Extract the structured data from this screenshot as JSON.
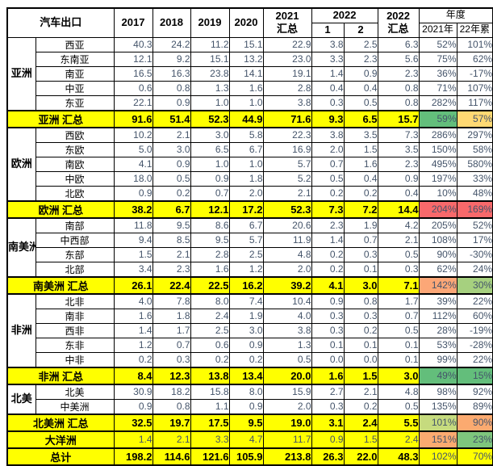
{
  "header": {
    "title": "汽车出口",
    "years": [
      "2017",
      "2018",
      "2019",
      "2020"
    ],
    "total_2021_line1": "2021",
    "total_2021_line2": "汇总",
    "group_2022": "2022",
    "months": [
      "1",
      "2"
    ],
    "total_2022_line1": "2022",
    "total_2022_line2": "汇总",
    "yearly_group": "年度",
    "yearly_cols": [
      "2021年",
      "22年累"
    ]
  },
  "colors": {
    "highlight_yellow": "#FFFF00",
    "number_text": "#44546A",
    "green": "#63BE7B",
    "light_green": "#A6D07F",
    "yellow_green": "#C6DB7E",
    "mid_green": "#7EC67D",
    "amber": "#FFD973",
    "orange": "#FCA777",
    "light_orange": "#FBAA70",
    "red": "#F8696B"
  },
  "groups": [
    {
      "name": "亚洲",
      "regions": [
        {
          "name": "西亚",
          "values": [
            "40.3",
            "24.2",
            "11.2",
            "15.1",
            "22.9",
            "3.8",
            "2.5",
            "6.3"
          ],
          "pcts": [
            "52%",
            "101%"
          ]
        },
        {
          "name": "东南亚",
          "values": [
            "12.1",
            "9.2",
            "15.1",
            "13.2",
            "23.0",
            "3.3",
            "2.3",
            "5.6"
          ],
          "pcts": [
            "75%",
            "62%"
          ]
        },
        {
          "name": "南亚",
          "values": [
            "16.5",
            "16.3",
            "23.8",
            "14.1",
            "19.1",
            "1.4",
            "0.9",
            "2.3"
          ],
          "pcts": [
            "36%",
            "-17%"
          ]
        },
        {
          "name": "中亚",
          "values": [
            "0.6",
            "0.8",
            "1.3",
            "1.6",
            "2.8",
            "0.4",
            "0.4",
            "0.8"
          ],
          "pcts": [
            "71%",
            "107%"
          ]
        },
        {
          "name": "东亚",
          "values": [
            "22.1",
            "0.9",
            "1.0",
            "1.0",
            "3.8",
            "0.3",
            "0.5",
            "0.8"
          ],
          "pcts": [
            "282%",
            "117%"
          ]
        }
      ],
      "summary": {
        "label": "亚洲 汇总",
        "values": [
          "91.6",
          "51.4",
          "52.3",
          "44.9",
          "71.6",
          "9.3",
          "6.5",
          "15.7"
        ],
        "pcts": [
          {
            "t": "59%",
            "bg": "#63BE7B"
          },
          {
            "t": "57%",
            "bg": "#FFD973"
          }
        ]
      }
    },
    {
      "name": "欧洲",
      "regions": [
        {
          "name": "西欧",
          "values": [
            "10.2",
            "2.1",
            "3.0",
            "5.8",
            "22.3",
            "3.8",
            "3.5",
            "7.3"
          ],
          "pcts": [
            "286%",
            "297%"
          ]
        },
        {
          "name": "东欧",
          "values": [
            "5.0",
            "3.0",
            "6.5",
            "6.7",
            "16.9",
            "2.0",
            "1.5",
            "3.5"
          ],
          "pcts": [
            "150%",
            "58%"
          ]
        },
        {
          "name": "南欧",
          "values": [
            "4.1",
            "0.9",
            "1.0",
            "1.0",
            "5.7",
            "0.7",
            "1.6",
            "2.3"
          ],
          "pcts": [
            "495%",
            "580%"
          ]
        },
        {
          "name": "中欧",
          "values": [
            "18.0",
            "0.5",
            "0.9",
            "1.8",
            "5.2",
            "0.5",
            "0.4",
            "0.9"
          ],
          "pcts": [
            "197%",
            "33%"
          ]
        },
        {
          "name": "北欧",
          "values": [
            "0.9",
            "0.2",
            "0.7",
            "2.0",
            "2.1",
            "0.2",
            "0.2",
            "0.4"
          ],
          "pcts": [
            "10%",
            "48%"
          ]
        }
      ],
      "summary": {
        "label": "欧洲 汇总",
        "values": [
          "38.2",
          "6.7",
          "12.1",
          "17.2",
          "52.3",
          "7.3",
          "7.2",
          "14.4"
        ],
        "pcts": [
          {
            "t": "204%",
            "bg": "#F8696B"
          },
          {
            "t": "169%",
            "bg": "#F8696B"
          }
        ]
      }
    },
    {
      "name": "南美洲",
      "regions": [
        {
          "name": "南部",
          "values": [
            "11.8",
            "9.5",
            "8.6",
            "6.7",
            "20.6",
            "2.3",
            "1.9",
            "4.2"
          ],
          "pcts": [
            "205%",
            "52%"
          ]
        },
        {
          "name": "中西部",
          "values": [
            "9.4",
            "8.5",
            "9.5",
            "5.7",
            "11.9",
            "1.4",
            "0.7",
            "2.1"
          ],
          "pcts": [
            "108%",
            "17%"
          ]
        },
        {
          "name": "东部",
          "values": [
            "1.5",
            "2.1",
            "2.8",
            "2.5",
            "4.8",
            "0.2",
            "0.3",
            "0.5"
          ],
          "pcts": [
            "90%",
            "-30%"
          ]
        },
        {
          "name": "北部",
          "values": [
            "3.4",
            "2.3",
            "1.6",
            "1.2",
            "2.0",
            "0.2",
            "0.1",
            "0.3"
          ],
          "pcts": [
            "62%",
            "24%"
          ]
        }
      ],
      "summary": {
        "label": "南美洲 汇总",
        "values": [
          "26.1",
          "22.4",
          "22.5",
          "16.2",
          "39.2",
          "4.1",
          "3.0",
          "7.1"
        ],
        "pcts": [
          {
            "t": "142%",
            "bg": "#FCA777"
          },
          {
            "t": "30%",
            "bg": "#A6D07F"
          }
        ]
      }
    },
    {
      "name": "非洲",
      "regions": [
        {
          "name": "北非",
          "values": [
            "4.0",
            "7.8",
            "8.0",
            "7.4",
            "10.4",
            "0.9",
            "0.8",
            "1.7"
          ],
          "pcts": [
            "39%",
            "22%"
          ]
        },
        {
          "name": "南非",
          "values": [
            "1.6",
            "1.8",
            "2.4",
            "1.9",
            "4.0",
            "0.3",
            "0.3",
            "0.7"
          ],
          "pcts": [
            "112%",
            "60%"
          ]
        },
        {
          "name": "西非",
          "values": [
            "1.4",
            "1.7",
            "2.5",
            "3.0",
            "3.8",
            "0.3",
            "0.2",
            "0.5"
          ],
          "pcts": [
            "28%",
            "-19%"
          ]
        },
        {
          "name": "东非",
          "values": [
            "1.2",
            "0.7",
            "0.6",
            "0.9",
            "1.3",
            "0.1",
            "0.1",
            "0.1"
          ],
          "pcts": [
            "53%",
            "-28%"
          ]
        },
        {
          "name": "中非",
          "values": [
            "0.2",
            "0.3",
            "0.2",
            "0.2",
            "0.5",
            "0.0",
            "0.0",
            "0.1"
          ],
          "pcts": [
            "99%",
            "22%"
          ]
        }
      ],
      "summary": {
        "label": "非洲 汇总",
        "values": [
          "8.4",
          "12.3",
          "13.8",
          "13.4",
          "20.0",
          "1.6",
          "1.5",
          "3.0"
        ],
        "pcts": [
          {
            "t": "49%",
            "bg": "#63BE7B"
          },
          {
            "t": "15%",
            "bg": "#63BE7B"
          }
        ]
      }
    },
    {
      "name": "北美",
      "regions": [
        {
          "name": "北美",
          "values": [
            "30.9",
            "18.2",
            "15.8",
            "8.0",
            "15.9",
            "2.7",
            "2.1",
            "4.8"
          ],
          "pcts": [
            "98%",
            "92%"
          ]
        },
        {
          "name": "中美洲",
          "values": [
            "0.9",
            "0.8",
            "1.1",
            "0.9",
            "2.0",
            "0.3",
            "0.2",
            "0.5"
          ],
          "pcts": [
            "135%",
            "89%"
          ]
        }
      ],
      "summary": {
        "label": "北美洲 汇总",
        "values": [
          "32.5",
          "19.7",
          "17.5",
          "9.5",
          "19.0",
          "3.1",
          "2.4",
          "5.5"
        ],
        "pcts": [
          {
            "t": "101%",
            "bg": "#C6DB7E"
          },
          {
            "t": "90%",
            "bg": "#FBAA70"
          }
        ]
      }
    }
  ],
  "footer_rows": [
    {
      "label": "大洋洲",
      "bold_values": false,
      "values": [
        "1.4",
        "2.1",
        "3.3",
        "4.7",
        "11.7",
        "0.9",
        "1.5",
        "2.4"
      ],
      "pcts": [
        {
          "t": "151%",
          "bg": "#FBAA70"
        },
        {
          "t": "23%",
          "bg": "#7EC67D"
        }
      ]
    },
    {
      "label": "总计",
      "bold_values": true,
      "values": [
        "198.2",
        "114.6",
        "121.6",
        "105.9",
        "213.8",
        "26.3",
        "22.0",
        "48.3"
      ],
      "pcts": [
        {
          "t": "102%",
          "bg": "#FFFF00"
        },
        {
          "t": "70%",
          "bg": "#FFFF00"
        }
      ]
    }
  ]
}
